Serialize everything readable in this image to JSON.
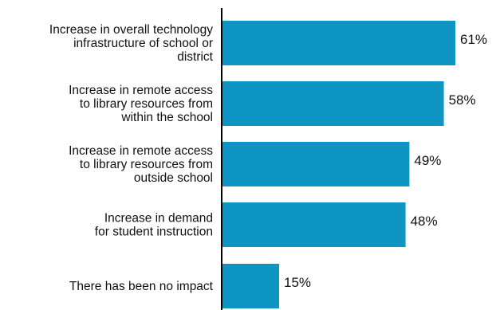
{
  "chart_data": {
    "type": "bar",
    "orientation": "horizontal",
    "categories": [
      "Increase in overall technology infrastructure of school or district",
      "Increase in remote access to library resources from within the school",
      "Increase in remote access to library resources from outside school",
      "Increase in demand for student instruction",
      "There has been no impact"
    ],
    "category_lines": [
      [
        "Increase in overall technology",
        "infrastructure of school or",
        "district"
      ],
      [
        "Increase in remote access",
        "to library resources from",
        "within the school"
      ],
      [
        "Increase in remote access",
        "to library resources from",
        "outside school"
      ],
      [
        "Increase in demand",
        "for student instruction"
      ],
      [
        "There has been no impact"
      ]
    ],
    "values": [
      61,
      58,
      49,
      48,
      15
    ],
    "value_labels": [
      "61%",
      "58%",
      "49%",
      "48%",
      "15%"
    ],
    "unit": "%",
    "xlim": [
      0,
      100
    ],
    "grid": false,
    "legend": "none",
    "colors": {
      "bar": "#0e95c3",
      "axis": "#000000",
      "text": "#111111"
    }
  }
}
